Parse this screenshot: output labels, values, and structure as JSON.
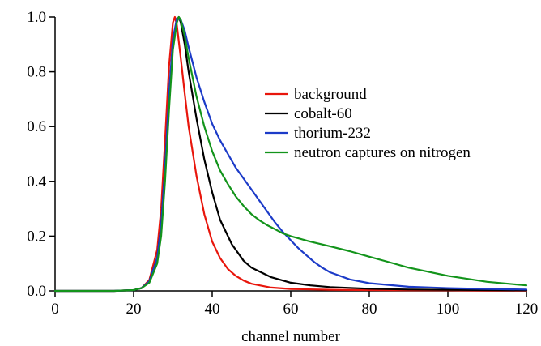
{
  "chart_data": {
    "type": "line",
    "title": "",
    "xlabel": "channel number",
    "ylabel": "",
    "xlim": [
      0,
      120
    ],
    "ylim": [
      0,
      1.0
    ],
    "xticks": [
      0,
      20,
      40,
      60,
      80,
      100,
      120
    ],
    "xtick_labels": [
      "0",
      "20",
      "40",
      "60",
      "80",
      "100",
      "120"
    ],
    "yticks": [
      0,
      0.2,
      0.4,
      0.6,
      0.8,
      1.0
    ],
    "ytick_labels": [
      "0.0",
      "0.2",
      "0.4",
      "0.6",
      "0.8",
      "1.0"
    ],
    "grid": false,
    "legend_position": "center-right",
    "series": [
      {
        "name": "background",
        "color": "#e8160c",
        "x": [
          0,
          15,
          20,
          22,
          24,
          26,
          27,
          28,
          29,
          30,
          30.5,
          31,
          32,
          33,
          34,
          36,
          38,
          40,
          42,
          44,
          46,
          48,
          50,
          55,
          60,
          70,
          80,
          90,
          100,
          110,
          120
        ],
        "y": [
          0,
          0,
          0.003,
          0.01,
          0.04,
          0.15,
          0.3,
          0.55,
          0.82,
          0.98,
          1.0,
          0.97,
          0.85,
          0.72,
          0.6,
          0.42,
          0.28,
          0.18,
          0.12,
          0.08,
          0.055,
          0.038,
          0.026,
          0.012,
          0.007,
          0.004,
          0.003,
          0.002,
          0.002,
          0.001,
          0.001
        ]
      },
      {
        "name": "cobalt-60",
        "color": "#000000",
        "x": [
          0,
          15,
          20,
          22,
          24,
          26,
          27,
          28,
          29,
          30,
          31,
          31.5,
          32,
          33,
          34,
          36,
          38,
          40,
          42,
          45,
          48,
          50,
          55,
          60,
          65,
          70,
          80,
          90,
          100,
          110,
          120
        ],
        "y": [
          0,
          0,
          0.003,
          0.01,
          0.035,
          0.12,
          0.24,
          0.45,
          0.7,
          0.9,
          0.99,
          1.0,
          0.98,
          0.9,
          0.8,
          0.63,
          0.48,
          0.36,
          0.26,
          0.17,
          0.11,
          0.085,
          0.05,
          0.03,
          0.02,
          0.014,
          0.008,
          0.005,
          0.004,
          0.003,
          0.002
        ]
      },
      {
        "name": "thorium-232",
        "color": "#1c3bc8",
        "x": [
          0,
          15,
          20,
          22,
          24,
          26,
          27,
          28,
          29,
          30,
          31,
          32,
          33,
          34,
          36,
          38,
          40,
          42,
          44,
          46,
          48,
          50,
          52,
          54,
          56,
          58,
          60,
          62,
          64,
          66,
          68,
          70,
          75,
          80,
          90,
          100,
          110,
          120
        ],
        "y": [
          0,
          0,
          0.003,
          0.01,
          0.035,
          0.12,
          0.24,
          0.45,
          0.72,
          0.92,
          0.995,
          0.99,
          0.95,
          0.89,
          0.78,
          0.69,
          0.61,
          0.55,
          0.5,
          0.45,
          0.41,
          0.37,
          0.33,
          0.29,
          0.25,
          0.215,
          0.185,
          0.155,
          0.13,
          0.105,
          0.085,
          0.068,
          0.042,
          0.028,
          0.015,
          0.01,
          0.007,
          0.005
        ]
      },
      {
        "name": "neutron captures on nitrogen",
        "color": "#13941b",
        "x": [
          0,
          15,
          20,
          22,
          24,
          26,
          27,
          28,
          29,
          30,
          31,
          31.5,
          32,
          33,
          34,
          36,
          38,
          40,
          42,
          44,
          46,
          48,
          50,
          52,
          54,
          56,
          58,
          60,
          65,
          70,
          75,
          80,
          85,
          90,
          100,
          110,
          120
        ],
        "y": [
          0,
          0,
          0.003,
          0.01,
          0.03,
          0.1,
          0.2,
          0.4,
          0.66,
          0.88,
          0.98,
          1.0,
          0.99,
          0.93,
          0.85,
          0.71,
          0.6,
          0.51,
          0.44,
          0.39,
          0.345,
          0.31,
          0.28,
          0.258,
          0.24,
          0.225,
          0.21,
          0.2,
          0.18,
          0.163,
          0.145,
          0.125,
          0.105,
          0.085,
          0.055,
          0.033,
          0.02
        ]
      }
    ]
  }
}
